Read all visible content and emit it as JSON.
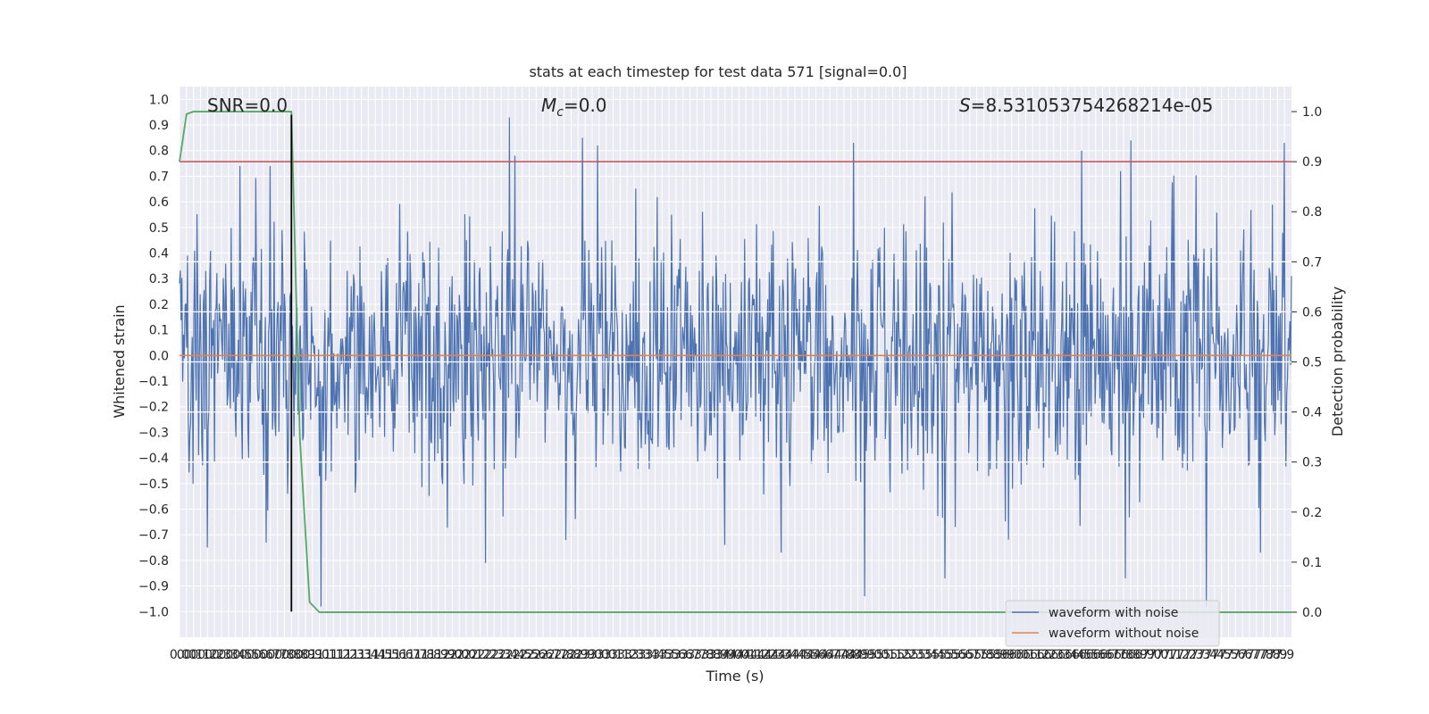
{
  "chart_data": {
    "type": "line",
    "title": "stats at each timestep for test data 571 [signal=0.0]",
    "xlabel": "Time (s)",
    "ylabel_left": "Whitened strain",
    "ylabel_right": "Detection probability",
    "xlim": [
      0.0,
      7.95
    ],
    "ylim_left": [
      -1.1,
      1.05
    ],
    "ylim_right": [
      -0.05,
      1.05
    ],
    "x_ticks": [
      0.0,
      0.05,
      0.1,
      0.15,
      0.2,
      0.25,
      0.3,
      0.35,
      0.4,
      0.45,
      0.5,
      0.55,
      0.6,
      0.65,
      0.7,
      0.75,
      0.8,
      0.85,
      0.9,
      0.95,
      1.0,
      1.05,
      1.1,
      1.15,
      1.2,
      1.25,
      1.3,
      1.35,
      1.4,
      1.45,
      1.5,
      1.55,
      1.6,
      1.65,
      1.7,
      1.75,
      1.8,
      1.85,
      1.9,
      1.95,
      2.0,
      2.05,
      2.1,
      2.15,
      2.2,
      2.25,
      2.3,
      2.35,
      2.4,
      2.45,
      2.5,
      2.55,
      2.6,
      2.65,
      2.7,
      2.75,
      2.8,
      2.85,
      2.9,
      2.95,
      3.0,
      3.05,
      3.1,
      3.15,
      3.2,
      3.25,
      3.3,
      3.35,
      3.4,
      3.45,
      3.5,
      3.55,
      3.6,
      3.65,
      3.7,
      3.75,
      3.8,
      3.85,
      3.9,
      3.95,
      4.0,
      4.05,
      4.1,
      4.15,
      4.2,
      4.25,
      4.3,
      4.35,
      4.4,
      4.45,
      4.5,
      4.55,
      4.6,
      4.65,
      4.7,
      4.75,
      4.8,
      4.85,
      4.9,
      4.95,
      5.0,
      5.05,
      5.1,
      5.15,
      5.2,
      5.25,
      5.3,
      5.35,
      5.4,
      5.45,
      5.5,
      5.55,
      5.6,
      5.65,
      5.7,
      5.75,
      5.8,
      5.85,
      5.9,
      5.95,
      6.0,
      6.05,
      6.1,
      6.15,
      6.2,
      6.25,
      6.3,
      6.35,
      6.4,
      6.45,
      6.5,
      6.55,
      6.6,
      6.65,
      6.7,
      6.75,
      6.8,
      6.85,
      6.9,
      6.95,
      7.0,
      7.05,
      7.1,
      7.15,
      7.2,
      7.25,
      7.3,
      7.35,
      7.4,
      7.45,
      7.5,
      7.55,
      7.6,
      7.65,
      7.7,
      7.75,
      7.8,
      7.85,
      7.9
    ],
    "x_tick_labels": [
      "0.0",
      "0.0",
      "0.1",
      "0.1",
      "0.2",
      "0.2",
      "0.3",
      "0.3",
      "0.4",
      "0.5",
      "0.5",
      "0.6",
      "0.6",
      "0.7",
      "0.7",
      "0.8",
      "0.8",
      "0.8",
      "0.9",
      "0.9",
      "1.0",
      "1.1",
      "1.1",
      "1.2",
      "1.2",
      "1.3",
      "1.3",
      "1.4",
      "1.4",
      "1.5",
      "1.5",
      "1.6",
      "1.6",
      "1.7",
      "1.7",
      "1.8",
      "1.8",
      "1.9",
      "1.9",
      "2.0",
      "2.0",
      "2.0",
      "2.1",
      "2.2",
      "2.2",
      "2.3",
      "2.3",
      "2.4",
      "2.4",
      "2.5",
      "2.5",
      "2.6",
      "2.6",
      "2.7",
      "2.7",
      "2.8",
      "2.8",
      "2.9",
      "2.9",
      "3.0",
      "3.0",
      "3.0",
      "3.1",
      "3.1",
      "3.2",
      "3.3",
      "3.3",
      "3.4",
      "3.4",
      "3.5",
      "3.5",
      "3.6",
      "3.6",
      "3.7",
      "3.7",
      "3.8",
      "3.8",
      "3.9",
      "3.9",
      "4.0",
      "4.0",
      "4.1",
      "4.1",
      "4.2",
      "4.2",
      "4.3",
      "4.3",
      "4.4",
      "4.4",
      "4.5",
      "4.5",
      "4.6",
      "4.6",
      "4.7",
      "4.7",
      "4.8",
      "4.8",
      "4.9",
      "4.9",
      "5.0",
      "5.0",
      "5.1",
      "5.1",
      "5.2",
      "5.2",
      "5.3",
      "5.3",
      "5.4",
      "5.4",
      "5.5",
      "5.5",
      "5.6",
      "5.6",
      "5.7",
      "5.7",
      "5.8",
      "5.8",
      "5.9",
      "5.9",
      "6.0",
      "6.0",
      "6.1",
      "6.1",
      "6.2",
      "6.2",
      "6.3",
      "6.3",
      "6.4",
      "6.4",
      "6.5",
      "6.5",
      "6.6",
      "6.6",
      "6.7",
      "6.7",
      "6.8",
      "6.8",
      "6.9",
      "6.9",
      "7.0",
      "7.0",
      "7.1",
      "7.1",
      "7.2",
      "7.2",
      "7.3",
      "7.3",
      "7.4",
      "7.4",
      "7.5",
      "7.5",
      "7.6",
      "7.6",
      "7.7",
      "7.7",
      "7.8",
      "7.8",
      "7.9",
      "7.9"
    ],
    "y_ticks_left": [
      -1.0,
      -0.9,
      -0.8,
      -0.7,
      -0.6,
      -0.5,
      -0.4,
      -0.3,
      -0.2,
      -0.1,
      0.0,
      0.1,
      0.2,
      0.3,
      0.4,
      0.5,
      0.6,
      0.7,
      0.8,
      0.9,
      1.0
    ],
    "y_tick_labels_left": [
      "−1.0",
      "−0.9",
      "−0.8",
      "−0.7",
      "−0.6",
      "−0.5",
      "−0.4",
      "−0.3",
      "−0.2",
      "−0.1",
      "0.0",
      "0.1",
      "0.2",
      "0.3",
      "0.4",
      "0.5",
      "0.6",
      "0.7",
      "0.8",
      "0.9",
      "1.0"
    ],
    "y_ticks_right": [
      0.0,
      0.1,
      0.2,
      0.3,
      0.4,
      0.5,
      0.6,
      0.7,
      0.8,
      0.9,
      1.0
    ],
    "y_tick_labels_right": [
      "0.0",
      "0.1",
      "0.2",
      "0.3",
      "0.4",
      "0.5",
      "0.6",
      "0.7",
      "0.8",
      "0.9",
      "1.0"
    ],
    "grid": true,
    "legend_position": "lower-right",
    "background_color": "#eaeaf2",
    "annotations": {
      "snr": "SNR=0.0",
      "mc_symbol": "M",
      "mc_sub": "c",
      "mc_value": "=0.0",
      "s_symbol": "S",
      "s_value": "=8.531053754268214e-05"
    },
    "series": [
      {
        "name": "waveform with noise",
        "color": "#4c72b0",
        "axis": "left",
        "style": "dense-noise",
        "sample_count": 1400,
        "typical_amplitude": 0.35,
        "peaks": [
          {
            "x": 0.43,
            "y": 0.74
          },
          {
            "x": 0.65,
            "y": 0.74
          },
          {
            "x": 2.36,
            "y": 0.93
          },
          {
            "x": 2.4,
            "y": 0.78
          },
          {
            "x": 2.88,
            "y": 0.85
          },
          {
            "x": 2.99,
            "y": 0.82
          },
          {
            "x": 4.82,
            "y": 0.83
          },
          {
            "x": 6.45,
            "y": 0.8
          },
          {
            "x": 6.8,
            "y": 0.84
          },
          {
            "x": 7.9,
            "y": 0.83
          },
          {
            "x": 0.2,
            "y": -0.75
          },
          {
            "x": 1.01,
            "y": -0.98
          },
          {
            "x": 2.19,
            "y": -0.81
          },
          {
            "x": 4.9,
            "y": -0.94
          },
          {
            "x": 5.47,
            "y": -0.87
          },
          {
            "x": 6.76,
            "y": -0.87
          },
          {
            "x": 7.34,
            "y": -0.98
          },
          {
            "x": 7.73,
            "y": -0.77
          },
          {
            "x": 0.62,
            "y": -0.73
          },
          {
            "x": 3.9,
            "y": -0.74
          },
          {
            "x": 4.3,
            "y": -0.77
          }
        ]
      },
      {
        "name": "waveform without noise",
        "color": "#dd8452",
        "axis": "left",
        "x": [
          0.0,
          7.95
        ],
        "y": [
          0.0,
          0.0
        ]
      },
      {
        "name": "detection probability",
        "color": "#55a868",
        "axis": "right",
        "x": [
          0.0,
          0.05,
          0.1,
          0.15,
          0.2,
          0.3,
          0.4,
          0.5,
          0.6,
          0.7,
          0.8,
          0.86,
          0.93,
          1.0,
          7.95
        ],
        "y": [
          0.9,
          0.995,
          1.0,
          1.0,
          1.0,
          1.0,
          1.0,
          1.0,
          1.0,
          1.0,
          1.0,
          0.35,
          0.02,
          0.0,
          0.0
        ]
      }
    ],
    "threshold": {
      "axis": "right",
      "y": 0.9,
      "color": "#c44e52"
    },
    "vertical_marker": {
      "x": 0.8,
      "y_from": -1.0,
      "y_to": 0.94,
      "color": "#000000"
    }
  }
}
